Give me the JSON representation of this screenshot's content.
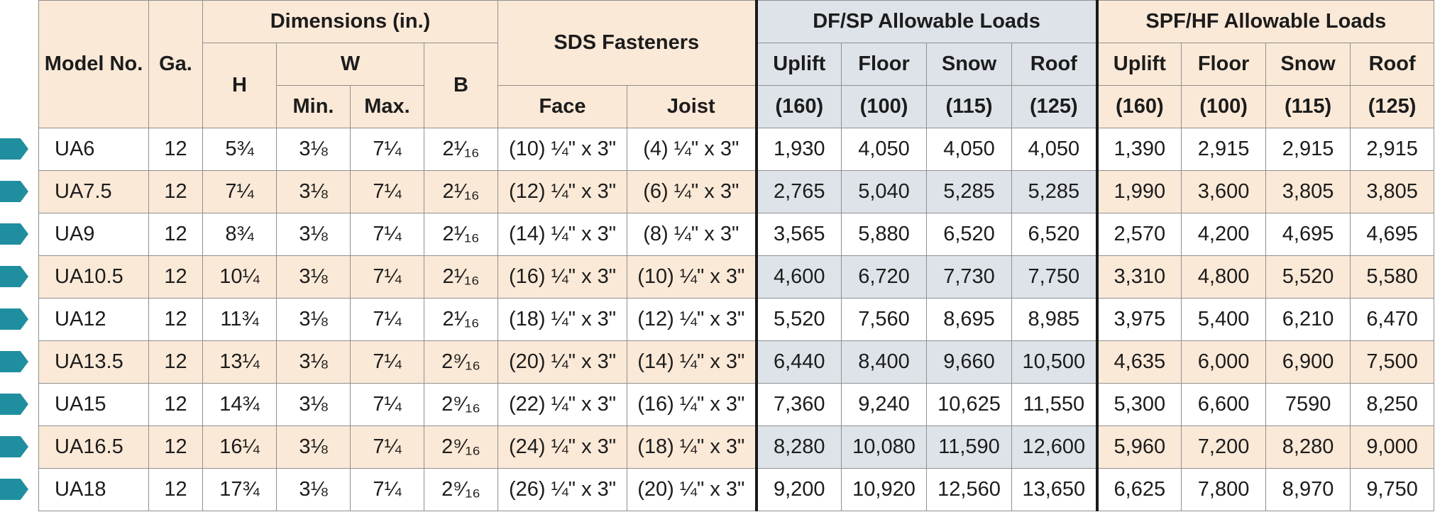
{
  "table": {
    "headers": {
      "model": "Model No.",
      "ga": "Ga.",
      "dimensions": "Dimensions (in.)",
      "h": "H",
      "w": "W",
      "w_min": "Min.",
      "w_max": "Max.",
      "b": "B",
      "sds": "SDS Fasteners",
      "face": "Face",
      "joist": "Joist",
      "dfsp": "DF/SP Allowable Loads",
      "spfhf": "SPF/HF Allowable Loads",
      "uplift": "Uplift",
      "floor": "Floor",
      "snow": "Snow",
      "roof": "Roof",
      "f160": "(160)",
      "f100": "(100)",
      "f115": "(115)",
      "f125": "(125)"
    },
    "rows": [
      [
        "UA6",
        "12",
        "5¾",
        "3⅛",
        "7¼",
        "2¹⁄₁₆",
        "(10) ¼\" x 3\"",
        "(4) ¼\" x 3\"",
        "1,930",
        "4,050",
        "4,050",
        "4,050",
        "1,390",
        "2,915",
        "2,915",
        "2,915"
      ],
      [
        "UA7.5",
        "12",
        "7¼",
        "3⅛",
        "7¼",
        "2¹⁄₁₆",
        "(12) ¼\" x 3\"",
        "(6) ¼\" x 3\"",
        "2,765",
        "5,040",
        "5,285",
        "5,285",
        "1,990",
        "3,600",
        "3,805",
        "3,805"
      ],
      [
        "UA9",
        "12",
        "8¾",
        "3⅛",
        "7¼",
        "2¹⁄₁₆",
        "(14) ¼\" x 3\"",
        "(8) ¼\" x 3\"",
        "3,565",
        "5,880",
        "6,520",
        "6,520",
        "2,570",
        "4,200",
        "4,695",
        "4,695"
      ],
      [
        "UA10.5",
        "12",
        "10¼",
        "3⅛",
        "7¼",
        "2¹⁄₁₆",
        "(16) ¼\" x 3\"",
        "(10) ¼\" x 3\"",
        "4,600",
        "6,720",
        "7,730",
        "7,750",
        "3,310",
        "4,800",
        "5,520",
        "5,580"
      ],
      [
        "UA12",
        "12",
        "11¾",
        "3⅛",
        "7¼",
        "2¹⁄₁₆",
        "(18) ¼\" x 3\"",
        "(12) ¼\" x 3\"",
        "5,520",
        "7,560",
        "8,695",
        "8,985",
        "3,975",
        "5,400",
        "6,210",
        "6,470"
      ],
      [
        "UA13.5",
        "12",
        "13¼",
        "3⅛",
        "7¼",
        "2⁹⁄₁₆",
        "(20) ¼\" x 3\"",
        "(14) ¼\" x 3\"",
        "6,440",
        "8,400",
        "9,660",
        "10,500",
        "4,635",
        "6,000",
        "6,900",
        "7,500"
      ],
      [
        "UA15",
        "12",
        "14¾",
        "3⅛",
        "7¼",
        "2⁹⁄₁₆",
        "(22) ¼\" x 3\"",
        "(16) ¼\" x 3\"",
        "7,360",
        "9,240",
        "10,625",
        "11,550",
        "5,300",
        "6,600",
        "7590",
        "8,250"
      ],
      [
        "UA16.5",
        "12",
        "16¼",
        "3⅛",
        "7¼",
        "2⁹⁄₁₆",
        "(24) ¼\" x 3\"",
        "(18) ¼\" x 3\"",
        "8,280",
        "10,080",
        "11,590",
        "12,600",
        "5,960",
        "7,200",
        "8,280",
        "9,000"
      ],
      [
        "UA18",
        "12",
        "17¾",
        "3⅛",
        "7¼",
        "2⁹⁄₁₆",
        "(26) ¼\" x 3\"",
        "(20) ¼\" x 3\"",
        "9,200",
        "10,920",
        "12,560",
        "13,650",
        "6,625",
        "7,800",
        "8,970",
        "9,750"
      ]
    ]
  },
  "colors": {
    "header_bg": "#fbe9d7",
    "dfsp_bg": "#dde3e9",
    "marker": "#1f8fa0",
    "border": "#8f8f8f"
  }
}
